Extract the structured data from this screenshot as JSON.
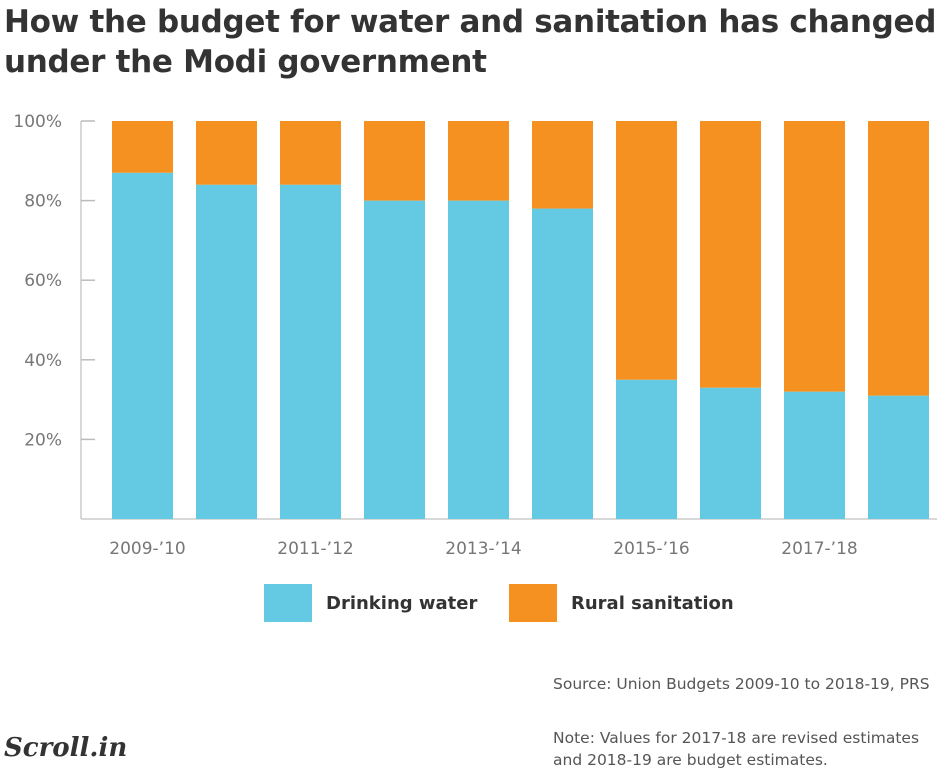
{
  "title": "How the budget for water and sanitation has changed under the Modi government",
  "chart_data": {
    "type": "bar",
    "stacked": true,
    "x_tick_labels": [
      "2009-’10",
      "2011-’12",
      "2013-’14",
      "2015-’16",
      "2017-’18"
    ],
    "y_tick_labels": [
      "100%",
      "80%",
      "60%",
      "40%",
      "20%"
    ],
    "ylim": [
      0,
      100
    ],
    "series": [
      {
        "name": "Drinking water",
        "color": "#64cae4",
        "values": [
          87,
          84,
          84,
          80,
          80,
          78,
          35,
          33,
          32,
          31
        ]
      },
      {
        "name": "Rural sanitation",
        "color": "#f59120",
        "values": [
          13,
          16,
          16,
          20,
          20,
          22,
          65,
          67,
          68,
          69
        ]
      }
    ],
    "legend_position": "bottom",
    "grid": false
  },
  "source": "Source: Union Budgets 2009-10 to 2018-19, PRS",
  "note": "Note: Values for 2017-18 are revised estimates and 2018-19 are budget estimates.",
  "logo": "Scroll.in"
}
